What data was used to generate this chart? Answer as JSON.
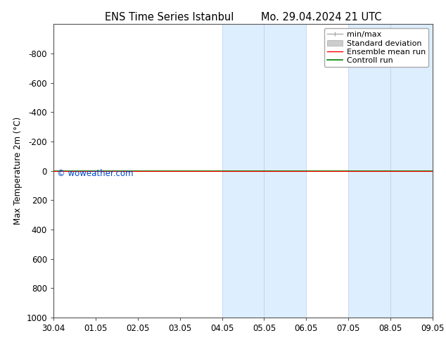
{
  "title_left": "ENS Time Series Istanbul",
  "title_right": "Mo. 29.04.2024 21 UTC",
  "ylabel": "Max Temperature 2m (°C)",
  "ylim_bottom": 1000,
  "ylim_top": -1000,
  "yticks": [
    -800,
    -600,
    -400,
    -200,
    0,
    200,
    400,
    600,
    800,
    1000
  ],
  "xtick_labels": [
    "30.04",
    "01.05",
    "02.05",
    "03.05",
    "04.05",
    "05.05",
    "06.05",
    "07.05",
    "08.05",
    "09.05"
  ],
  "xtick_positions": [
    0,
    1,
    2,
    3,
    4,
    5,
    6,
    7,
    8,
    9
  ],
  "shaded_regions": [
    {
      "xmin": 4,
      "xmax": 5,
      "color": "#ddeeff"
    },
    {
      "xmin": 5,
      "xmax": 6,
      "color": "#ddeeff"
    },
    {
      "xmin": 7,
      "xmax": 8,
      "color": "#ddeeff"
    },
    {
      "xmin": 8,
      "xmax": 9,
      "color": "#ddeeff"
    }
  ],
  "control_run_y": 0,
  "ensemble_mean_y": 0,
  "legend_labels": [
    "min/max",
    "Standard deviation",
    "Ensemble mean run",
    "Controll run"
  ],
  "legend_colors": [
    "#aaaaaa",
    "#cccccc",
    "red",
    "green"
  ],
  "watermark": "© woweather.com",
  "watermark_color": "#0044cc",
  "bg_color": "white",
  "spine_color": "#555555",
  "font_size": 8.5,
  "title_font_size": 10.5
}
